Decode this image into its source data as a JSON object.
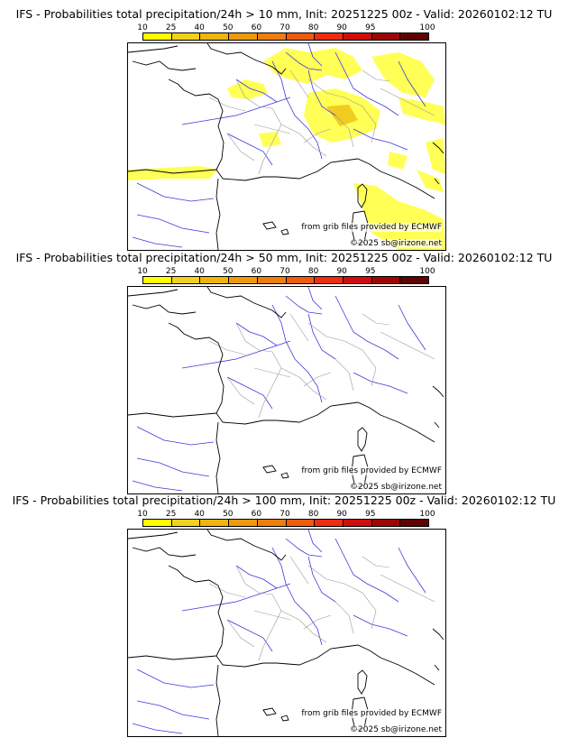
{
  "colors": {
    "scale": [
      "#ffff00",
      "#f2d21c",
      "#efb40e",
      "#ef9a0a",
      "#ef7d0f",
      "#ef5b11",
      "#ef2b11",
      "#d00c0c",
      "#9e0606",
      "#5f0303"
    ],
    "precip_light": "#ffff4d",
    "precip_mid": "#f0c81e",
    "rivers": "#3a3adc",
    "borders": "#9a9a9a",
    "coast": "#000000"
  },
  "scale": {
    "labels": [
      "10",
      "25",
      "40",
      "50",
      "60",
      "70",
      "80",
      "90",
      "95",
      "100"
    ]
  },
  "panels": [
    {
      "title": "IFS - Probabilities total precipitation/24h > 10 mm, Init: 20251225 00z - Valid: 20260102:12 TU",
      "credit_source": "from grib files provided by ECMWF",
      "credit_copyright": "©2025 sb@irizone.net",
      "precip_present": true
    },
    {
      "title": "IFS - Probabilities total precipitation/24h > 50 mm, Init: 20251225 00z - Valid: 20260102:12 TU",
      "credit_source": "from grib files provided by ECMWF",
      "credit_copyright": "©2025 sb@irizone.net",
      "precip_present": false
    },
    {
      "title": "IFS - Probabilities total precipitation/24h > 100 mm, Init: 20251225 00z - Valid: 20260102:12 TU",
      "credit_source": "from grib files provided by ECMWF",
      "credit_copyright": "©2025 sb@irizone.net",
      "precip_present": false
    }
  ]
}
